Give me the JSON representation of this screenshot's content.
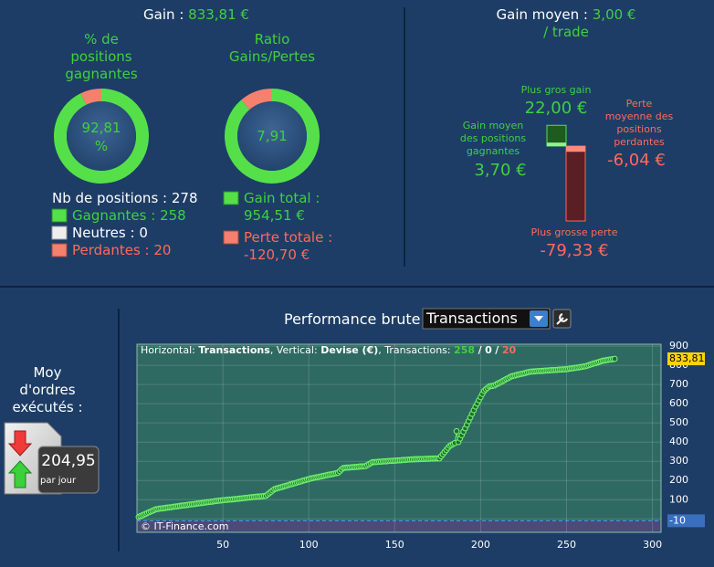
{
  "summary": {
    "gain": {
      "label": "Gain :",
      "value": "833,81 €"
    },
    "win_rate": {
      "title": "% de\npositions\ngagnantes",
      "value_label": "92,81\n%"
    },
    "ratio": {
      "title": "Ratio\nGains/Pertes",
      "value_label": "7,91"
    },
    "positions": {
      "label": "Nb de positions :",
      "value": 278
    },
    "winners": {
      "label": "Gagnantes :",
      "value": 258
    },
    "neutral": {
      "label": "Neutres :",
      "value": 0
    },
    "losers": {
      "label": "Perdantes :",
      "value": 20
    },
    "gain_total": {
      "label": "Gain total :",
      "value": 954.51,
      "value_label": "954,51 €"
    },
    "loss_total": {
      "label": "Perte totale :",
      "value": -120.7,
      "value_label": "-120,70 €"
    }
  },
  "average": {
    "label": "Gain moyen :",
    "value": "3,00 € / trade",
    "max_gain": {
      "label": "Plus gros gain",
      "value": 22.0,
      "value_label": "22,00 €"
    },
    "avg_win": {
      "label": "Gain moyen\ndes positions\ngagnantes",
      "value": 3.7,
      "value_label": "3,70 €"
    },
    "avg_loss": {
      "label": "Perte\nmoyenne des\npositions\nperdantes",
      "value": -6.04,
      "value_label": "-6,04 €"
    },
    "max_loss": {
      "label": "Plus grosse perte",
      "value": -79.33,
      "value_label": "-79,33 €"
    }
  },
  "orders": {
    "label": "Moy\nd'ordres\nexécutés :",
    "value": "204,95",
    "unit": "par jour"
  },
  "chart_data": {
    "type": "line",
    "title": "Performance brute",
    "selector": "Transactions",
    "info": {
      "horizontal_label": "Horizontal:",
      "horizontal": "Transactions",
      "vertical_label": ", Vertical:",
      "vertical": "Devise (€)",
      "count_label": ", Transactions:",
      "wins": 258,
      "separator": "/",
      "neutral": 0,
      "losses": 20
    },
    "watermark": "© IT-Finance.com",
    "color": "#6ef06e",
    "x": [
      1,
      2,
      3,
      4,
      5,
      6,
      7,
      8,
      9,
      10,
      11,
      12,
      13,
      14,
      15,
      16,
      17,
      18,
      19,
      20,
      21,
      22,
      23,
      24,
      25,
      26,
      27,
      28,
      29,
      30,
      31,
      32,
      33,
      34,
      35,
      36,
      37,
      38,
      39,
      40,
      41,
      42,
      43,
      44,
      45,
      46,
      47,
      48,
      49,
      50,
      51,
      52,
      53,
      54,
      55,
      56,
      57,
      58,
      59,
      60,
      61,
      62,
      63,
      64,
      65,
      66,
      67,
      68,
      69,
      70,
      71,
      72,
      73,
      74,
      75,
      76,
      77,
      78,
      79,
      80,
      81,
      82,
      83,
      84,
      85,
      86,
      87,
      88,
      89,
      90,
      91,
      92,
      93,
      94,
      95,
      96,
      97,
      98,
      99,
      100,
      101,
      102,
      103,
      104,
      105,
      106,
      107,
      108,
      109,
      110,
      111,
      112,
      113,
      114,
      115,
      116,
      117,
      118,
      119,
      120,
      121,
      122,
      123,
      124,
      125,
      126,
      127,
      128,
      129,
      130,
      131,
      132,
      133,
      134,
      135,
      136,
      137,
      138,
      139,
      140,
      141,
      142,
      143,
      144,
      145,
      146,
      147,
      148,
      149,
      150,
      151,
      152,
      153,
      154,
      155,
      156,
      157,
      158,
      159,
      160,
      161,
      162,
      163,
      164,
      165,
      166,
      167,
      168,
      169,
      170,
      171,
      172,
      173,
      174,
      175,
      176,
      177,
      178,
      179,
      180,
      181,
      182,
      183,
      184,
      185,
      186,
      187,
      188,
      189,
      190,
      191,
      192,
      193,
      194,
      195,
      196,
      197,
      198,
      199,
      200,
      201,
      202,
      203,
      204,
      205,
      206,
      207,
      208,
      209,
      210,
      211,
      212,
      213,
      214,
      215,
      216,
      217,
      218,
      219,
      220,
      221,
      222,
      223,
      224,
      225,
      226,
      227,
      228,
      229,
      230,
      231,
      232,
      233,
      234,
      235,
      236,
      237,
      238,
      239,
      240,
      241,
      242,
      243,
      244,
      245,
      246,
      247,
      248,
      249,
      250,
      251,
      252,
      253,
      254,
      255,
      256,
      257,
      258,
      259,
      260,
      261,
      262,
      263,
      264,
      265,
      266,
      267,
      268,
      269,
      270,
      271,
      272,
      273,
      274,
      275,
      276,
      277,
      278
    ],
    "values": [
      10,
      14,
      18,
      22,
      26,
      30,
      34,
      38,
      42,
      46,
      50,
      51,
      53,
      54,
      55,
      56,
      58,
      59,
      60,
      61,
      63,
      64,
      65,
      66,
      68,
      69,
      70,
      71,
      72,
      74,
      75,
      76,
      77,
      78,
      80,
      81,
      82,
      83,
      84,
      86,
      87,
      88,
      89,
      90,
      92,
      93,
      94,
      95,
      96,
      97,
      98,
      99,
      100,
      101,
      101,
      102,
      103,
      104,
      105,
      106,
      107,
      108,
      109,
      110,
      111,
      112,
      113,
      114,
      115,
      116,
      116,
      117,
      118,
      119,
      120,
      127,
      134,
      141,
      148,
      155,
      158,
      160,
      163,
      165,
      168,
      171,
      173,
      176,
      179,
      181,
      184,
      186,
      189,
      192,
      194,
      197,
      200,
      202,
      205,
      207,
      210,
      212,
      214,
      216,
      217,
      219,
      221,
      223,
      225,
      227,
      229,
      231,
      232,
      234,
      236,
      238,
      240,
      248,
      257,
      265,
      266,
      267,
      267,
      268,
      269,
      270,
      270,
      271,
      272,
      273,
      273,
      274,
      275,
      280,
      285,
      290,
      295,
      296,
      296,
      297,
      298,
      298,
      299,
      300,
      300,
      301,
      302,
      302,
      303,
      303,
      304,
      305,
      305,
      306,
      307,
      307,
      308,
      309,
      309,
      310,
      310,
      311,
      311,
      311,
      312,
      312,
      312,
      313,
      313,
      313,
      314,
      314,
      314,
      315,
      315,
      315,
      326,
      337,
      348,
      359,
      370,
      380,
      385,
      390,
      395,
      457,
      400,
      418,
      436,
      454,
      472,
      490,
      509,
      528,
      547,
      566,
      585,
      601,
      618,
      634,
      651,
      667,
      675,
      682,
      690,
      692,
      693,
      695,
      700,
      705,
      709,
      714,
      719,
      724,
      729,
      733,
      738,
      743,
      745,
      747,
      750,
      752,
      754,
      756,
      758,
      760,
      763,
      765,
      767,
      768,
      768,
      769,
      770,
      770,
      771,
      771,
      772,
      773,
      773,
      774,
      775,
      775,
      776,
      776,
      777,
      778,
      778,
      779,
      779,
      780,
      781,
      783,
      784,
      785,
      787,
      788,
      789,
      791,
      792,
      794,
      795,
      798,
      801,
      804,
      807,
      810,
      812,
      815,
      818,
      821,
      824,
      825,
      827,
      828,
      830,
      831,
      832,
      833.81
    ],
    "xlim": [
      0,
      305
    ],
    "xticks": [
      50,
      100,
      150,
      200,
      250,
      300
    ],
    "ylim": [
      -70,
      910
    ],
    "yticks": [
      0,
      100,
      200,
      300,
      400,
      500,
      600,
      700,
      800,
      900
    ],
    "grid": true,
    "markers": [
      {
        "value": 833.81,
        "label": "833,81",
        "color": "#ffd400"
      },
      {
        "value": -10,
        "label": "-10",
        "color": "#3a6fc0",
        "line": true
      }
    ]
  }
}
